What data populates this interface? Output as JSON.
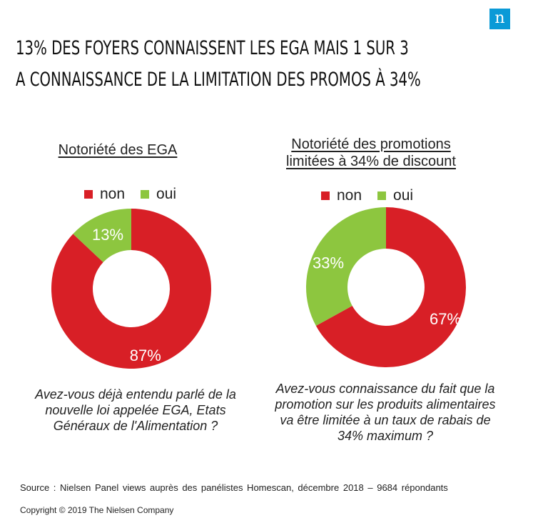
{
  "brand": {
    "logo_letter": "n",
    "logo_color": "#0a9ad7"
  },
  "title": {
    "line1": "13% DES FOYERS CONNAISSENT  LES EGA MAIS 1 SUR 3",
    "line2": "A CONNAISSANCE  DE LA LIMITATION  DES PROMOS À 34%"
  },
  "colors": {
    "non": "#d81f26",
    "oui": "#8dc63f"
  },
  "chart_data": [
    {
      "type": "pie",
      "title": "Notoriété des EGA",
      "legend": [
        "non",
        "oui"
      ],
      "legend_position": "top",
      "slices": [
        {
          "label": "non",
          "value": 87,
          "display": "87%"
        },
        {
          "label": "oui",
          "value": 13,
          "display": "13%"
        }
      ],
      "question": "Avez-vous déjà entendu parlé de la nouvelle loi appelée EGA, Etats Généraux de l'Alimentation ?"
    },
    {
      "type": "pie",
      "title_line1": "Notoriété des promotions",
      "title_line2": "limitées  à 34% de discount",
      "legend": [
        "non",
        "oui"
      ],
      "legend_position": "top",
      "slices": [
        {
          "label": "non",
          "value": 67,
          "display": "67%"
        },
        {
          "label": "oui",
          "value": 33,
          "display": "33%"
        }
      ],
      "question": "Avez-vous connaissance du fait que la promotion sur les produits alimentaires va être limitée à un taux de rabais de 34% maximum ?"
    }
  ],
  "footer": {
    "source": "Source : Nielsen  Panel views auprès  des panélistes  Homescan, décembre  2018  – 9684 répondants",
    "copyright": "Copyright © 2019 The Nielsen Company"
  }
}
